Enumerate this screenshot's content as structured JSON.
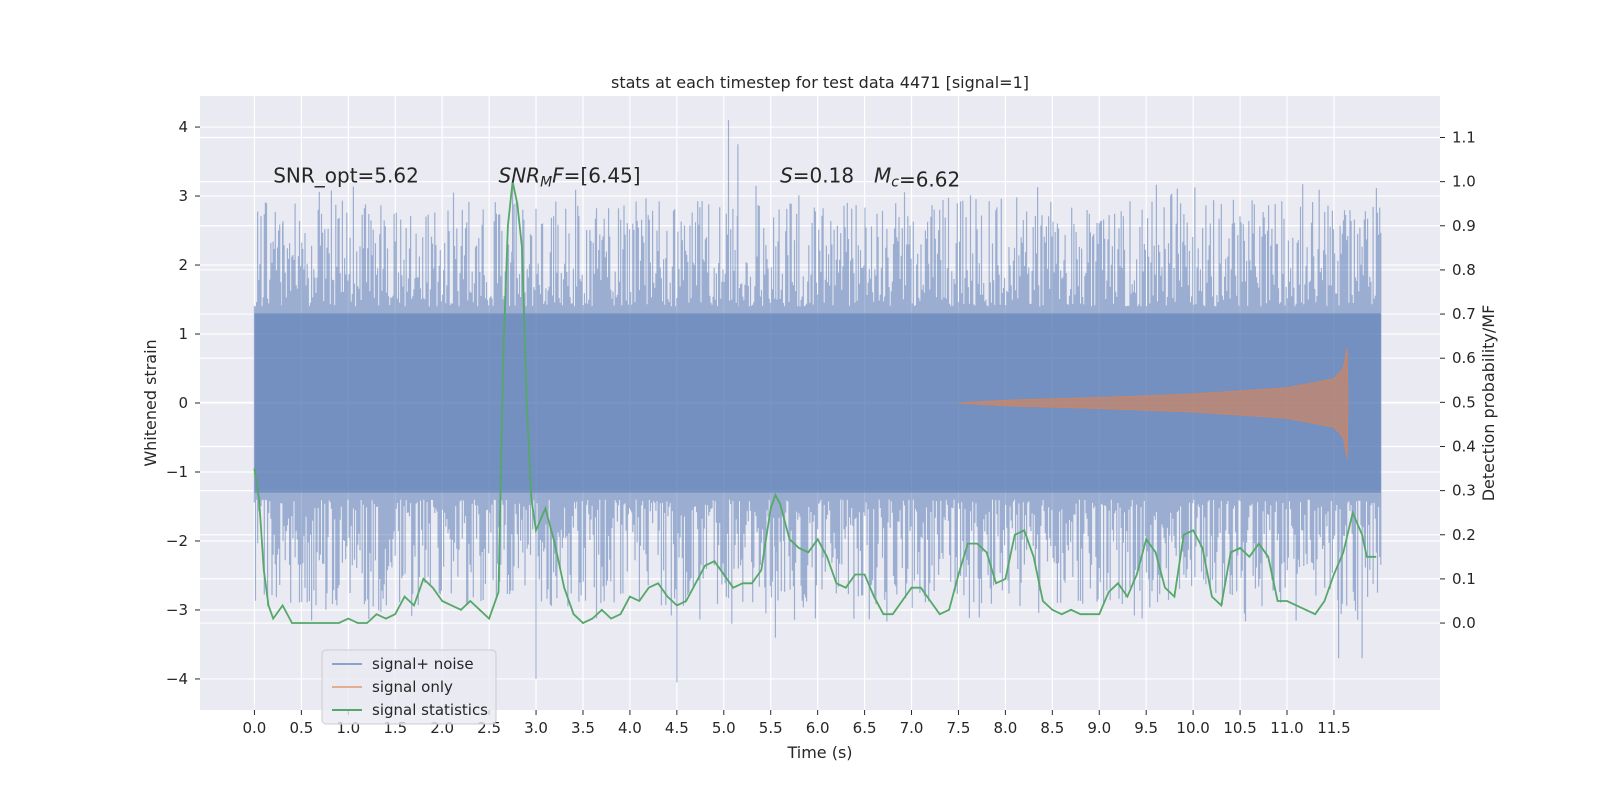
{
  "chart_data": {
    "type": "line",
    "title": "stats at each timestep for test data 4471 [signal=1]",
    "xlabel": "Time (s)",
    "ylabel": "Whitened strain",
    "ylabel_right": "Detection probability/MF",
    "xlim": [
      -0.58,
      12.63
    ],
    "ylim": [
      -4.45,
      4.45
    ],
    "ylim_right": [
      -0.197,
      1.194
    ],
    "x_ticks": [
      0.0,
      0.5,
      1.0,
      1.5,
      2.0,
      2.5,
      3.0,
      3.5,
      4.0,
      4.5,
      5.0,
      5.5,
      6.0,
      6.5,
      7.0,
      7.5,
      8.0,
      8.5,
      9.0,
      9.5,
      10.0,
      10.5,
      11.0,
      11.5
    ],
    "x_tick_labels": [
      "0.0",
      "0.5",
      "1.0",
      "1.5",
      "2.0",
      "2.5",
      "3.0",
      "3.5",
      "4.0",
      "4.5",
      "5.0",
      "5.5",
      "6.0",
      "6.5",
      "7.0",
      "7.5",
      "8.0",
      "8.5",
      "9.0",
      "9.5",
      "10.0",
      "10.5",
      "11.0",
      "11.5"
    ],
    "y_ticks": [
      -4,
      -3,
      -2,
      -1,
      0,
      1,
      2,
      3,
      4
    ],
    "y_tick_labels": [
      "−4",
      "−3",
      "−2",
      "−1",
      "0",
      "1",
      "2",
      "3",
      "4"
    ],
    "y_right_ticks": [
      0.0,
      0.1,
      0.2,
      0.3,
      0.4,
      0.5,
      0.6,
      0.7,
      0.8,
      0.9,
      1.0,
      1.1
    ],
    "y_right_tick_labels": [
      "0.0",
      "0.1",
      "0.2",
      "0.3",
      "0.4",
      "0.5",
      "0.6",
      "0.7",
      "0.8",
      "0.9",
      "1.0",
      "1.1"
    ],
    "grid": true,
    "legend_position": "lower-left",
    "annotations": [
      {
        "x": 0.2,
        "y": 3.3,
        "text": "SNR_opt=5.62"
      },
      {
        "x": 2.6,
        "y": 3.3,
        "text": "SNR_MF=[6.45]",
        "math": true
      },
      {
        "x": 5.6,
        "y": 3.3,
        "text": "S=0.18",
        "math": true
      },
      {
        "x": 6.6,
        "y": 3.3,
        "text": "M_c=6.62",
        "math": true
      }
    ],
    "series": [
      {
        "name": "signal+ noise",
        "color": "#4c72b0",
        "opacity": 0.5,
        "axis": "left",
        "x_range": [
          0.0,
          12.0
        ],
        "core_amplitude": 1.3,
        "peak_positive_max": 4.1,
        "peak_negative_min": -4.05,
        "peaks": [
          [
            0.3,
            2.6
          ],
          [
            2.75,
            3.15
          ],
          [
            3.0,
            -4.0
          ],
          [
            4.5,
            -4.05
          ],
          [
            5.05,
            4.1
          ],
          [
            5.15,
            3.75
          ],
          [
            5.55,
            -3.4
          ],
          [
            11.55,
            -3.7
          ],
          [
            11.8,
            -3.7
          ]
        ]
      },
      {
        "name": "signal only",
        "color": "#dd8452",
        "opacity": 0.6,
        "axis": "left",
        "x_range": [
          7.5,
          11.65
        ],
        "envelope": [
          [
            7.5,
            0.0
          ],
          [
            8.0,
            0.04
          ],
          [
            9.0,
            0.08
          ],
          [
            10.0,
            0.13
          ],
          [
            11.0,
            0.22
          ],
          [
            11.5,
            0.35
          ],
          [
            11.6,
            0.5
          ],
          [
            11.64,
            0.8
          ],
          [
            11.65,
            0.0
          ]
        ]
      },
      {
        "name": "signal statistics",
        "color": "#55a868",
        "opacity": 1.0,
        "axis": "right",
        "x": [
          0.0,
          0.05,
          0.1,
          0.15,
          0.2,
          0.3,
          0.4,
          0.5,
          0.7,
          0.9,
          1.0,
          1.1,
          1.2,
          1.3,
          1.4,
          1.5,
          1.6,
          1.7,
          1.8,
          1.9,
          2.0,
          2.1,
          2.2,
          2.3,
          2.4,
          2.5,
          2.6,
          2.65,
          2.7,
          2.75,
          2.8,
          2.85,
          2.9,
          2.95,
          3.0,
          3.1,
          3.2,
          3.3,
          3.4,
          3.5,
          3.6,
          3.7,
          3.8,
          3.9,
          4.0,
          4.1,
          4.2,
          4.3,
          4.4,
          4.5,
          4.6,
          4.7,
          4.8,
          4.9,
          5.0,
          5.1,
          5.2,
          5.3,
          5.4,
          5.5,
          5.55,
          5.6,
          5.7,
          5.8,
          5.9,
          6.0,
          6.1,
          6.2,
          6.3,
          6.4,
          6.5,
          6.6,
          6.7,
          6.8,
          6.9,
          7.0,
          7.1,
          7.2,
          7.3,
          7.4,
          7.5,
          7.6,
          7.7,
          7.8,
          7.9,
          8.0,
          8.1,
          8.2,
          8.3,
          8.4,
          8.5,
          8.6,
          8.7,
          8.8,
          8.9,
          9.0,
          9.1,
          9.2,
          9.3,
          9.4,
          9.5,
          9.6,
          9.7,
          9.8,
          9.9,
          10.0,
          10.1,
          10.2,
          10.3,
          10.4,
          10.5,
          10.6,
          10.7,
          10.8,
          10.9,
          11.0,
          11.1,
          11.2,
          11.3,
          11.4,
          11.5,
          11.6,
          11.7,
          11.8,
          11.85,
          11.9,
          11.95
        ],
        "y": [
          0.35,
          0.28,
          0.12,
          0.04,
          0.01,
          0.04,
          0.0,
          0.0,
          0.0,
          0.0,
          0.01,
          0.0,
          0.0,
          0.02,
          0.01,
          0.02,
          0.06,
          0.04,
          0.1,
          0.08,
          0.05,
          0.04,
          0.03,
          0.05,
          0.03,
          0.01,
          0.07,
          0.6,
          0.9,
          1.0,
          0.95,
          0.85,
          0.5,
          0.28,
          0.21,
          0.26,
          0.18,
          0.08,
          0.02,
          0.0,
          0.01,
          0.03,
          0.01,
          0.02,
          0.06,
          0.05,
          0.08,
          0.09,
          0.06,
          0.04,
          0.05,
          0.09,
          0.13,
          0.14,
          0.11,
          0.08,
          0.09,
          0.09,
          0.12,
          0.26,
          0.29,
          0.27,
          0.19,
          0.17,
          0.16,
          0.19,
          0.15,
          0.09,
          0.08,
          0.11,
          0.11,
          0.06,
          0.02,
          0.02,
          0.05,
          0.08,
          0.08,
          0.05,
          0.02,
          0.03,
          0.11,
          0.18,
          0.18,
          0.16,
          0.09,
          0.1,
          0.2,
          0.21,
          0.15,
          0.05,
          0.03,
          0.02,
          0.03,
          0.02,
          0.02,
          0.02,
          0.07,
          0.09,
          0.06,
          0.11,
          0.19,
          0.16,
          0.08,
          0.06,
          0.2,
          0.21,
          0.17,
          0.06,
          0.04,
          0.16,
          0.17,
          0.15,
          0.18,
          0.15,
          0.05,
          0.05,
          0.04,
          0.03,
          0.02,
          0.05,
          0.11,
          0.16,
          0.25,
          0.2,
          0.15,
          0.15,
          0.15
        ]
      }
    ]
  }
}
